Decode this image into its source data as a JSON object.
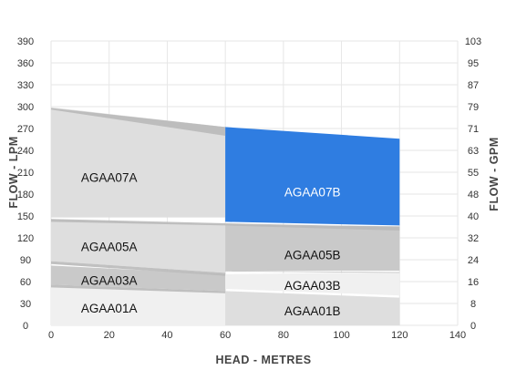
{
  "chart_data": {
    "type": "area",
    "xlabel": "HEAD - METRES",
    "ylabel_left": "FLOW - LPM",
    "ylabel_right": "FLOW - GPM",
    "xlim": [
      0,
      140
    ],
    "ylim": [
      0,
      390
    ],
    "x_ticks": [
      0,
      20,
      40,
      60,
      80,
      100,
      120,
      140
    ],
    "y_ticks_left": [
      0,
      30,
      60,
      90,
      120,
      150,
      180,
      210,
      240,
      270,
      300,
      330,
      360,
      390
    ],
    "y_ticks_right": [
      "0",
      "8",
      "16",
      "24",
      "32",
      "40",
      "48",
      "55",
      "63",
      "71",
      "79",
      "87",
      "95",
      "103"
    ],
    "grid": true,
    "colors": {
      "light": "#f0f0f0",
      "mid": "#dedede",
      "dark": "#c9c9c9",
      "band": "#b9b9b9",
      "accent": "#2f7de1"
    },
    "regions": [
      {
        "name": "AGAA01A",
        "fill": "light",
        "points": [
          [
            0,
            0
          ],
          [
            60,
            0
          ],
          [
            60,
            47
          ],
          [
            0,
            53
          ]
        ],
        "label_at": [
          20,
          24
        ],
        "highlight": false
      },
      {
        "name": "AGAA01B",
        "fill": "mid",
        "points": [
          [
            60,
            0
          ],
          [
            120,
            0
          ],
          [
            120,
            38
          ],
          [
            60,
            47
          ]
        ],
        "label_at": [
          90,
          20
        ],
        "highlight": false
      },
      {
        "name": "AGAA03A",
        "fill": "dark",
        "points": [
          [
            0,
            56
          ],
          [
            60,
            47
          ],
          [
            60,
            70
          ],
          [
            0,
            82
          ]
        ],
        "label_at": [
          20,
          62
        ],
        "highlight": false
      },
      {
        "name": "AGAA03B",
        "fill": "light",
        "points": [
          [
            60,
            50
          ],
          [
            120,
            41
          ],
          [
            120,
            73
          ],
          [
            60,
            70
          ]
        ],
        "label_at": [
          90,
          55
        ],
        "highlight": false
      },
      {
        "name": "AGAA05A",
        "fill": "mid",
        "points": [
          [
            0,
            88
          ],
          [
            60,
            72
          ],
          [
            60,
            138
          ],
          [
            0,
            145
          ]
        ],
        "label_at": [
          20,
          108
        ],
        "highlight": false
      },
      {
        "name": "AGAA05B",
        "fill": "dark",
        "points": [
          [
            60,
            75
          ],
          [
            120,
            75
          ],
          [
            120,
            136
          ],
          [
            60,
            138
          ]
        ],
        "label_at": [
          90,
          97
        ],
        "highlight": false
      },
      {
        "name": "AGAA07A",
        "fill": "mid",
        "points": [
          [
            0,
            148
          ],
          [
            60,
            148
          ],
          [
            60,
            272
          ],
          [
            0,
            299
          ]
        ],
        "label_at": [
          20,
          203
        ],
        "highlight": false
      },
      {
        "name": "AGAA07B",
        "fill": "accent",
        "points": [
          [
            60,
            142
          ],
          [
            120,
            137
          ],
          [
            120,
            256
          ],
          [
            60,
            272
          ]
        ],
        "label_at": [
          90,
          183
        ],
        "highlight": true
      }
    ],
    "bands": [
      {
        "points": [
          [
            0,
            298
          ],
          [
            60,
            272
          ],
          [
            60,
            260
          ],
          [
            0,
            296
          ]
        ]
      },
      {
        "points": [
          [
            0,
            146
          ],
          [
            60,
            140
          ],
          [
            60,
            137
          ],
          [
            0,
            142
          ]
        ]
      },
      {
        "points": [
          [
            0,
            88
          ],
          [
            60,
            72
          ],
          [
            60,
            68
          ],
          [
            0,
            84
          ]
        ]
      },
      {
        "points": [
          [
            0,
            56
          ],
          [
            60,
            47
          ],
          [
            60,
            44
          ],
          [
            0,
            52
          ]
        ]
      },
      {
        "points": [
          [
            60,
            140
          ],
          [
            120,
            135
          ],
          [
            120,
            130
          ],
          [
            60,
            137
          ]
        ]
      },
      {
        "points": [
          [
            60,
            74
          ],
          [
            120,
            72
          ],
          [
            120,
            73
          ],
          [
            60,
            75
          ]
        ]
      }
    ]
  }
}
